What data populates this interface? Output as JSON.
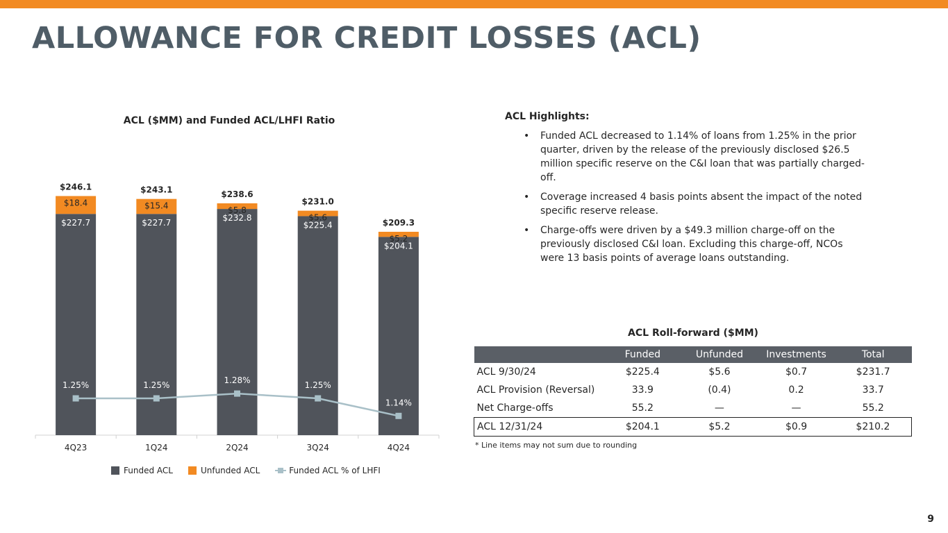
{
  "title": "ALLOWANCE FOR CREDIT LOSSES (ACL)",
  "colors": {
    "accent": "#f28a22",
    "funded": "#50545b",
    "unfunded": "#f28a22",
    "ratio_line": "#a9c0c8",
    "title": "#4f5d67"
  },
  "chart_data": {
    "type": "bar",
    "title": "ACL ($MM) and Funded ACL/LHFI Ratio",
    "categories": [
      "4Q23",
      "1Q24",
      "2Q24",
      "3Q24",
      "4Q24"
    ],
    "series": [
      {
        "name": "Funded ACL",
        "values": [
          227.7,
          227.7,
          232.8,
          225.4,
          204.1
        ],
        "labels": [
          "$227.7",
          "$227.7",
          "$232.8",
          "$225.4",
          "$204.1"
        ]
      },
      {
        "name": "Unfunded ACL",
        "values": [
          18.4,
          15.4,
          5.8,
          5.6,
          5.2
        ],
        "labels": [
          "$18.4",
          "$15.4",
          "$5.8",
          "$5.6",
          "$5.2"
        ]
      },
      {
        "name": "Funded ACL % of LHFI",
        "type": "line",
        "values": [
          1.25,
          1.25,
          1.28,
          1.25,
          1.14
        ],
        "labels": [
          "1.25%",
          "1.25%",
          "1.28%",
          "1.25%",
          "1.14%"
        ]
      }
    ],
    "totals": [
      246.1,
      243.1,
      238.6,
      231.0,
      209.3
    ],
    "total_labels": [
      "$246.1",
      "$243.1",
      "$238.6",
      "$231.0",
      "$209.3"
    ],
    "legend_position": "bottom",
    "grid": false
  },
  "highlights": {
    "title": "ACL Highlights:",
    "bullet_symbol": "•",
    "items": [
      "Funded ACL decreased to 1.14% of loans from 1.25% in the prior quarter, driven by the release of the previously disclosed $26.5 million specific reserve on the C&I loan that was partially charged-off.",
      "Coverage increased 4 basis points absent the impact of the noted specific reserve release.",
      "Charge-offs were driven by a $49.3 million charge-off on the previously disclosed C&I loan. Excluding this charge-off, NCOs were 13 basis points of average loans outstanding."
    ]
  },
  "rollforward": {
    "title": "ACL Roll-forward ($MM)",
    "headers": [
      "",
      "Funded",
      "Unfunded",
      "Investments",
      "Total"
    ],
    "rows": [
      [
        "ACL  9/30/24",
        "$225.4",
        "$5.6",
        "$0.7",
        "$231.7"
      ],
      [
        "ACL Provision (Reversal)",
        "33.9",
        "(0.4)",
        "0.2",
        "33.7"
      ],
      [
        "Net Charge-offs",
        "55.2",
        "—",
        "—",
        "55.2"
      ],
      [
        "ACL  12/31/24",
        "$204.1",
        "$5.2",
        "$0.9",
        "$210.2"
      ]
    ],
    "footnote": "* Line items may not sum due to rounding"
  },
  "page_number": "9"
}
